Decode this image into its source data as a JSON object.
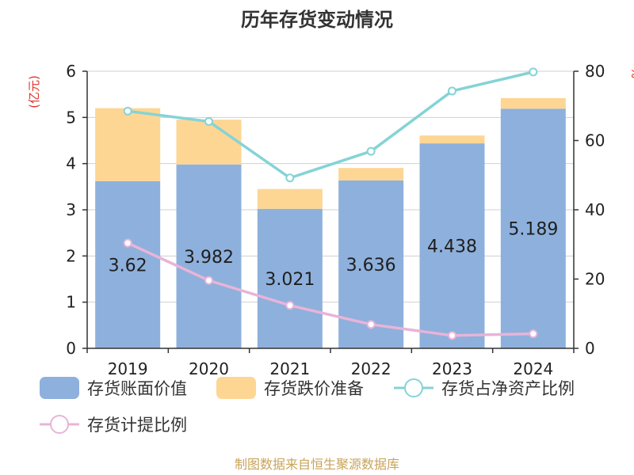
{
  "chart_data": {
    "type": "bar",
    "title": "历年存货变动情况",
    "left_axis_unit": "(亿元)",
    "right_axis_unit": "%",
    "categories": [
      "2019",
      "2020",
      "2021",
      "2022",
      "2023",
      "2024"
    ],
    "y_left": {
      "range": [
        0,
        6
      ],
      "ticks": [
        "0",
        "1",
        "2",
        "3",
        "4",
        "5",
        "6"
      ]
    },
    "y_right": {
      "range": [
        0,
        80
      ],
      "ticks": [
        "0",
        "20",
        "40",
        "60",
        "80"
      ]
    },
    "grid": true,
    "legend_position": "bottom",
    "series": [
      {
        "name": "存货账面价值",
        "type": "bar",
        "axis": "left",
        "stack": "a",
        "color": "#8eb0dc",
        "values": [
          3.62,
          3.982,
          3.021,
          3.636,
          4.438,
          5.189
        ],
        "labels": [
          "3.62",
          "3.982",
          "3.021",
          "3.636",
          "4.438",
          "5.189"
        ]
      },
      {
        "name": "存货跌价准备",
        "type": "bar",
        "axis": "left",
        "stack": "a",
        "color": "#fdd694",
        "values": [
          1.58,
          0.97,
          0.43,
          0.27,
          0.17,
          0.23
        ]
      },
      {
        "name": "存货占净资产比例",
        "type": "line",
        "axis": "right",
        "color": "#85d3d6",
        "values": [
          68.5,
          65.5,
          49.2,
          56.9,
          74.3,
          79.8
        ]
      },
      {
        "name": "存货计提比例",
        "type": "line",
        "axis": "right",
        "color": "#e8b4d8",
        "values": [
          30.4,
          19.6,
          12.4,
          6.9,
          3.7,
          4.2
        ]
      }
    ]
  },
  "source_text": "制图数据来自恒生聚源数据库"
}
